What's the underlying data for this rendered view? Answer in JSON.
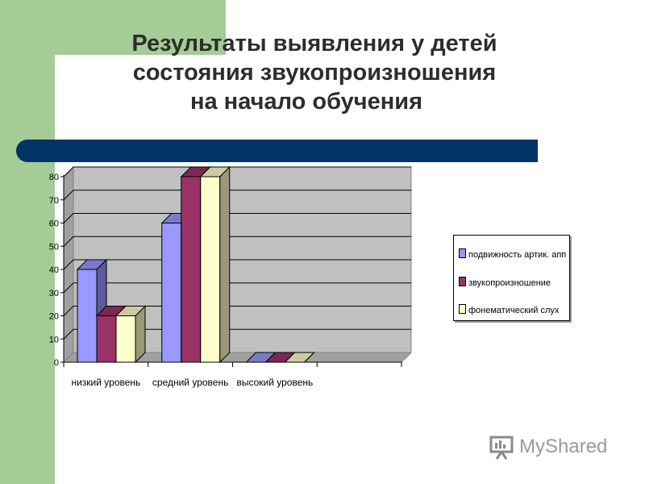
{
  "slide": {
    "title_lines": [
      "Результаты выявления у детей",
      "состояния звукопроизношения",
      "на начало обучения"
    ],
    "watermark": "MyShared",
    "colors": {
      "green": "#a4cc96",
      "blue_bar": "#003366",
      "title": "#2d2d2d"
    }
  },
  "chart_data": {
    "type": "bar",
    "style": "3d-clustered",
    "title": "",
    "xlabel": "",
    "ylabel": "",
    "ylim": [
      0,
      80
    ],
    "yticks": [
      0,
      10,
      20,
      30,
      40,
      50,
      60,
      70,
      80
    ],
    "grid": true,
    "legend_position": "right",
    "categories": [
      "низкий уровень",
      "средний уровень",
      "высокий уровень",
      ""
    ],
    "series": [
      {
        "name": "подвижность артик. апп",
        "values": [
          40,
          60,
          0,
          0
        ],
        "color": "#9999ff"
      },
      {
        "name": "звукопроизношение",
        "values": [
          20,
          80,
          0,
          0
        ],
        "color": "#993366"
      },
      {
        "name": "фонематический слух",
        "values": [
          20,
          80,
          0,
          0
        ],
        "color": "#ffffcc"
      }
    ]
  }
}
